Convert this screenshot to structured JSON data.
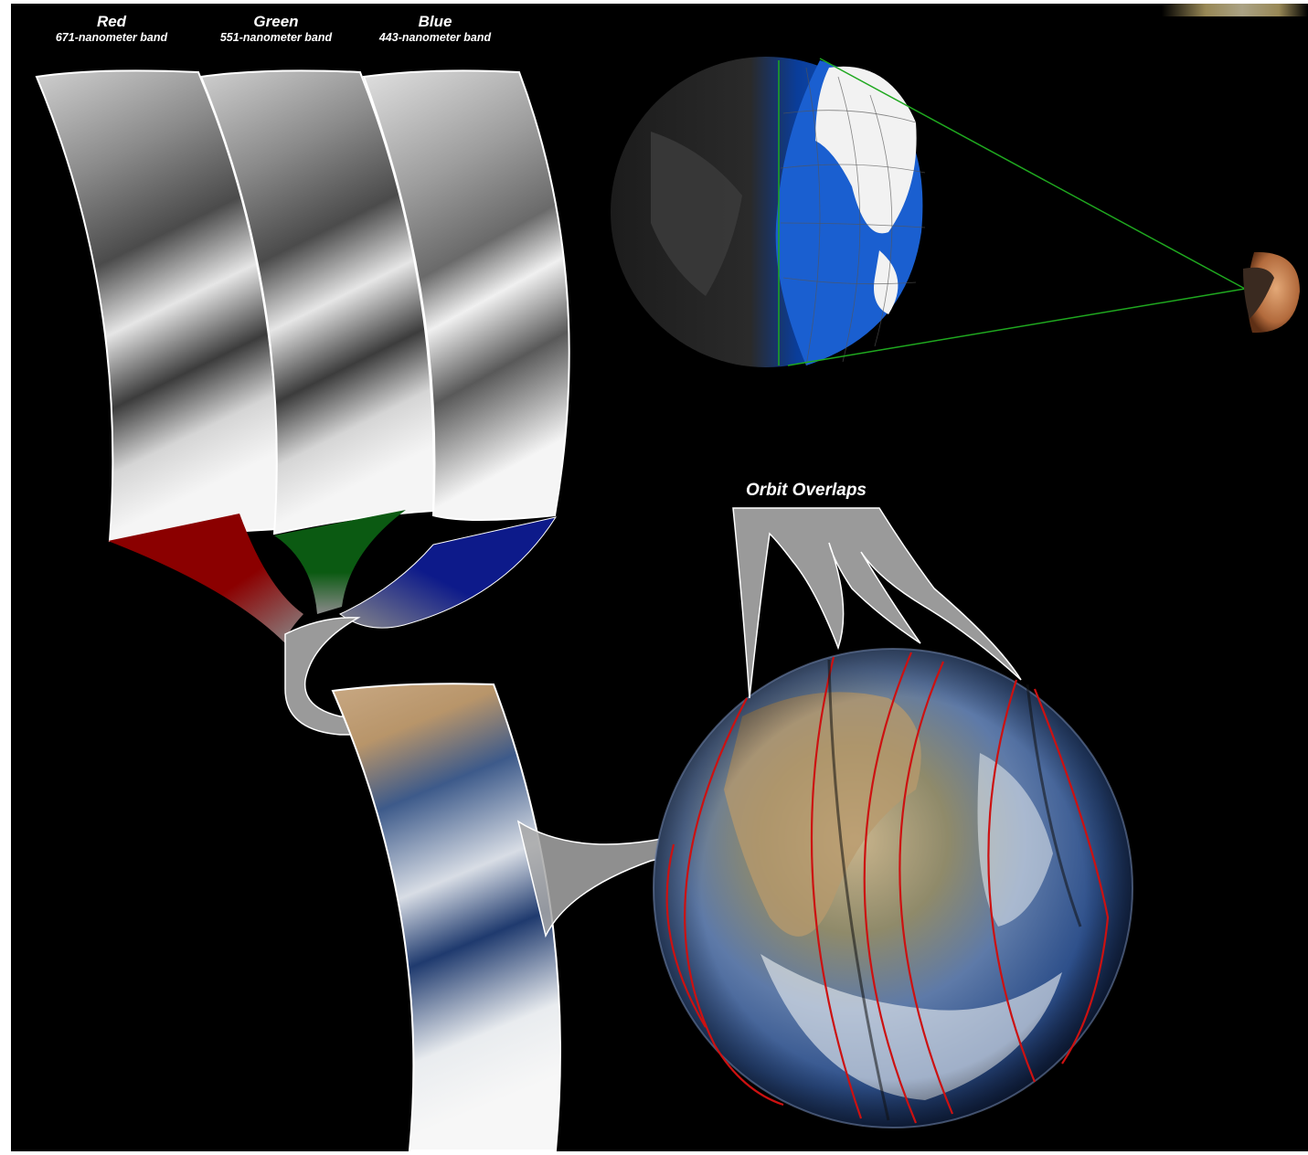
{
  "bands": [
    {
      "name": "Red",
      "wavelength": "671-nanometer band",
      "color": "#8b0000"
    },
    {
      "name": "Green",
      "wavelength": "551-nanometer band",
      "color": "#0b5a12"
    },
    {
      "name": "Blue",
      "wavelength": "443-nanometer band",
      "color": "#0d1a8a"
    }
  ],
  "orbit_label": "Orbit Overlaps",
  "colors": {
    "background": "#000000",
    "ocean": "#1a5fd0",
    "land_white": "#f2f2f2",
    "sight_line": "#1fa81f",
    "orbit_line": "#cc1111",
    "arrow_gray": "#9a9a9a",
    "corner_mark": "#d9c27a"
  }
}
